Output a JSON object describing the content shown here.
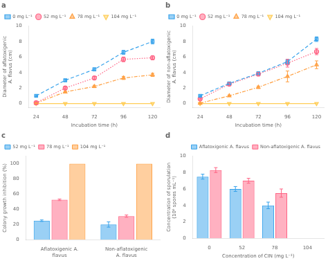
{
  "chart_data": [
    {
      "type": "line",
      "title": "a",
      "xlabel": "Incubation time (h)",
      "ylabel": "Diameter of aflatoxigenic\nA. flavus (cm)",
      "x": [
        24,
        48,
        72,
        96,
        120
      ],
      "series": [
        {
          "name": "0 mg L⁻¹",
          "values": [
            1.0,
            3.0,
            4.4,
            6.6,
            8.0
          ],
          "yerr": [
            0.1,
            0.15,
            0.2,
            0.25,
            0.3
          ],
          "marker": "square",
          "line_style": "dashed"
        },
        {
          "name": "52 mg L⁻¹",
          "values": [
            0.1,
            2.0,
            3.3,
            5.7,
            5.9
          ],
          "yerr": [
            0.1,
            0.15,
            0.2,
            0.3,
            0.25
          ],
          "marker": "circle",
          "line_style": "dotted"
        },
        {
          "name": "78 mg L⁻¹",
          "values": [
            0.05,
            1.5,
            2.2,
            3.3,
            3.7
          ],
          "yerr": [
            0.05,
            0.1,
            0.15,
            0.2,
            0.2
          ],
          "marker": "triangle_up",
          "line_style": "dashdot"
        },
        {
          "name": "104 mg L⁻¹",
          "values": [
            0.0,
            0.0,
            0.0,
            0.0,
            0.0
          ],
          "yerr": [
            0.0,
            0.0,
            0.0,
            0.0,
            0.0
          ],
          "marker": "triangle_down",
          "line_style": "solid"
        }
      ],
      "xlim": [
        18,
        126
      ],
      "xticks": [
        24,
        48,
        72,
        96,
        120
      ],
      "ylim": [
        -0.5,
        10
      ],
      "yticks": [
        0,
        2,
        4,
        6,
        8,
        10
      ],
      "legend": "upper left",
      "grid": false
    },
    {
      "type": "line",
      "title": "b",
      "xlabel": "Incubation time (h)",
      "ylabel": "Diameter of non-aflatoxigenic\nA. flavus (cm)",
      "x": [
        24,
        48,
        72,
        96,
        120
      ],
      "series": [
        {
          "name": "0 mg L⁻¹",
          "values": [
            1.0,
            2.6,
            3.9,
            5.4,
            8.3
          ],
          "yerr": [
            0.1,
            0.15,
            0.2,
            0.3,
            0.3
          ],
          "marker": "square",
          "line_style": "dashed"
        },
        {
          "name": "52 mg L⁻¹",
          "values": [
            0.6,
            2.5,
            3.8,
            5.2,
            6.7
          ],
          "yerr": [
            0.1,
            0.2,
            0.2,
            0.5,
            0.4
          ],
          "marker": "circle",
          "line_style": "dotted"
        },
        {
          "name": "78 mg L⁻¹",
          "values": [
            0.05,
            1.0,
            2.1,
            3.5,
            5.0
          ],
          "yerr": [
            0.05,
            0.1,
            0.15,
            0.7,
            0.5
          ],
          "marker": "triangle_up",
          "line_style": "dashdot"
        },
        {
          "name": "104 mg L⁻¹",
          "values": [
            0.0,
            0.0,
            0.0,
            0.0,
            0.0
          ],
          "yerr": [
            0.0,
            0.0,
            0.0,
            0.0,
            0.0
          ],
          "marker": "triangle_down",
          "line_style": "solid"
        }
      ],
      "xlim": [
        18,
        126
      ],
      "xticks": [
        24,
        48,
        72,
        96,
        120
      ],
      "ylim": [
        -0.5,
        10
      ],
      "yticks": [
        0,
        2,
        4,
        6,
        8,
        10
      ],
      "legend": "upper left",
      "grid": false
    },
    {
      "type": "bar",
      "title": "c",
      "ylabel": "Colony growth inhibition (%)",
      "categories": [
        "Aflatoxigenic A. flavus",
        "Non-aflatoxigenic A. flavus"
      ],
      "series": [
        {
          "name": "52 mg L⁻¹",
          "values": [
            25.0,
            20.0
          ],
          "yerr": [
            1.0,
            3.5
          ]
        },
        {
          "name": "78 mg L⁻¹",
          "values": [
            52.5,
            31.0
          ],
          "yerr": [
            1.0,
            1.5
          ]
        },
        {
          "name": "104 mg L⁻¹",
          "values": [
            100.0,
            100.0
          ],
          "yerr": [
            0.0,
            0.0
          ]
        }
      ],
      "ylim": [
        0,
        110
      ],
      "yticks": [
        0,
        20,
        40,
        60,
        80,
        100
      ],
      "legend": "upper left",
      "grid": false
    },
    {
      "type": "bar",
      "title": "d",
      "xlabel": "Concentration of CIN (mg L⁻¹)",
      "ylabel": "Concentration of sporulation\n(10⁶ spores mL⁻¹)",
      "categories": [
        "0",
        "52",
        "78",
        "104"
      ],
      "series": [
        {
          "name": "Aflatoxigenic A. flavus",
          "values": [
            7.5,
            6.0,
            4.0,
            0.0
          ],
          "yerr": [
            0.3,
            0.3,
            0.4,
            0.0
          ]
        },
        {
          "name": "Non-aflatoxigenic A. flavus",
          "values": [
            8.3,
            7.0,
            5.5,
            0.0
          ],
          "yerr": [
            0.3,
            0.3,
            0.5,
            0.0
          ]
        }
      ],
      "ylim": [
        0,
        10
      ],
      "yticks": [
        0,
        2,
        4,
        6,
        8,
        10
      ],
      "legend": "upper right",
      "grid": false
    }
  ]
}
